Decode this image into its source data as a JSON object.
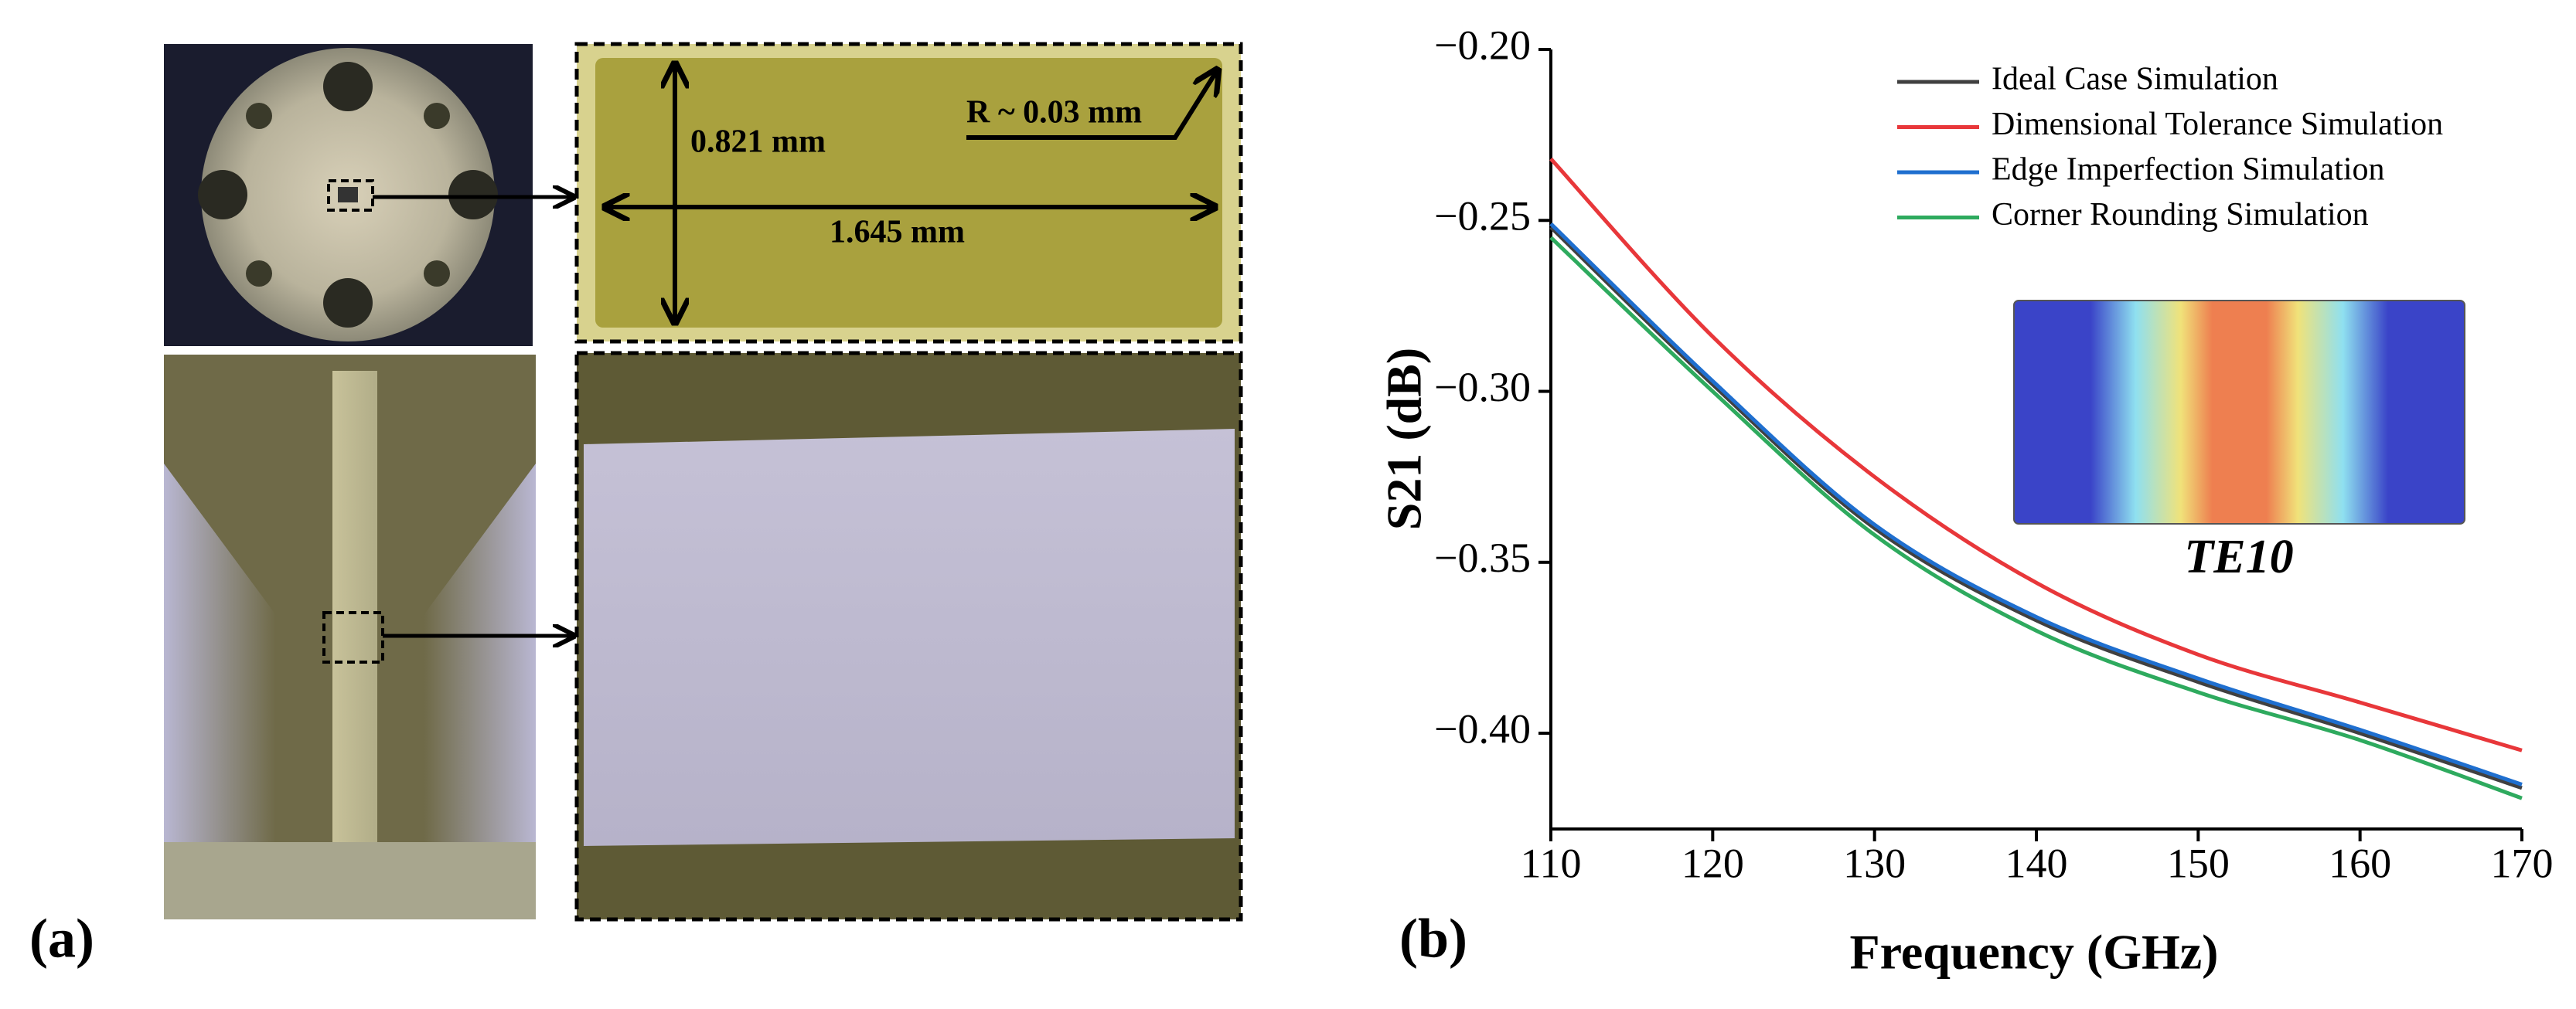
{
  "panel_a": {
    "label": "(a)",
    "annotations": {
      "height": "0.821 mm",
      "width": "1.645 mm",
      "radius": "R ~ 0.03 mm"
    }
  },
  "panel_b": {
    "label": "(b)"
  },
  "chart_data": {
    "type": "line",
    "x_label": "Frequency (GHz)",
    "y_label": "S21 (dB)",
    "inset_label": "TE10",
    "x": [
      110,
      120,
      130,
      140,
      150,
      160,
      170
    ],
    "series": [
      {
        "name": "Ideal Case Simulation",
        "color": "#404040",
        "values": [
          -0.252,
          -0.298,
          -0.34,
          -0.367,
          -0.385,
          -0.4,
          -0.416
        ]
      },
      {
        "name": "Dimensional Tolerance Simulation",
        "color": "#e8373a",
        "values": [
          -0.232,
          -0.284,
          -0.325,
          -0.356,
          -0.377,
          -0.391,
          -0.405
        ]
      },
      {
        "name": "Edge Imperfection Simulation",
        "color": "#1f6fcf",
        "values": [
          -0.251,
          -0.297,
          -0.339,
          -0.366,
          -0.384,
          -0.399,
          -0.415
        ]
      },
      {
        "name": "Corner Rounding Simulation",
        "color": "#2eaa5e",
        "values": [
          -0.255,
          -0.3,
          -0.342,
          -0.37,
          -0.388,
          -0.402,
          -0.419
        ]
      }
    ],
    "xlim": [
      110,
      170
    ],
    "xticks": [
      110,
      120,
      130,
      140,
      150,
      160,
      170
    ],
    "ylim": [
      -0.428,
      -0.2
    ],
    "yticks": [
      {
        "value": -0.2,
        "label": "−0.20"
      },
      {
        "value": -0.25,
        "label": "−0.25"
      },
      {
        "value": -0.3,
        "label": "−0.30"
      },
      {
        "value": -0.35,
        "label": "−0.35"
      },
      {
        "value": -0.4,
        "label": "−0.40"
      }
    ],
    "legend": "upper right"
  }
}
